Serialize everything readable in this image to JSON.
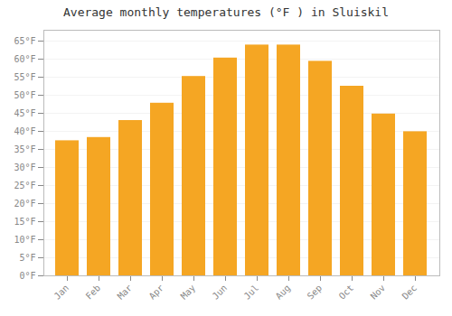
{
  "chart_data": {
    "type": "bar",
    "title": "Average monthly temperatures (°F ) in Sluiskil",
    "categories": [
      "Jan",
      "Feb",
      "Mar",
      "Apr",
      "May",
      "Jun",
      "Jul",
      "Aug",
      "Sep",
      "Oct",
      "Nov",
      "Dec"
    ],
    "values": [
      37.4,
      38.3,
      43.0,
      47.8,
      55.2,
      60.3,
      63.9,
      63.9,
      59.4,
      52.5,
      44.8,
      39.9
    ],
    "color": "#F5A623",
    "ylim": [
      0,
      68
    ],
    "yticks": [
      {
        "value": 0,
        "label": "0°F"
      },
      {
        "value": 5,
        "label": "5°F"
      },
      {
        "value": 10,
        "label": "10°F"
      },
      {
        "value": 15,
        "label": "15°F"
      },
      {
        "value": 20,
        "label": "20°F"
      },
      {
        "value": 25,
        "label": "25°F"
      },
      {
        "value": 30,
        "label": "30°F"
      },
      {
        "value": 35,
        "label": "35°F"
      },
      {
        "value": 40,
        "label": "40°F"
      },
      {
        "value": 45,
        "label": "45°F"
      },
      {
        "value": 50,
        "label": "50°F"
      },
      {
        "value": 55,
        "label": "55°F"
      },
      {
        "value": 60,
        "label": "60°F"
      },
      {
        "value": 65,
        "label": "65°F"
      }
    ],
    "grid": true
  }
}
